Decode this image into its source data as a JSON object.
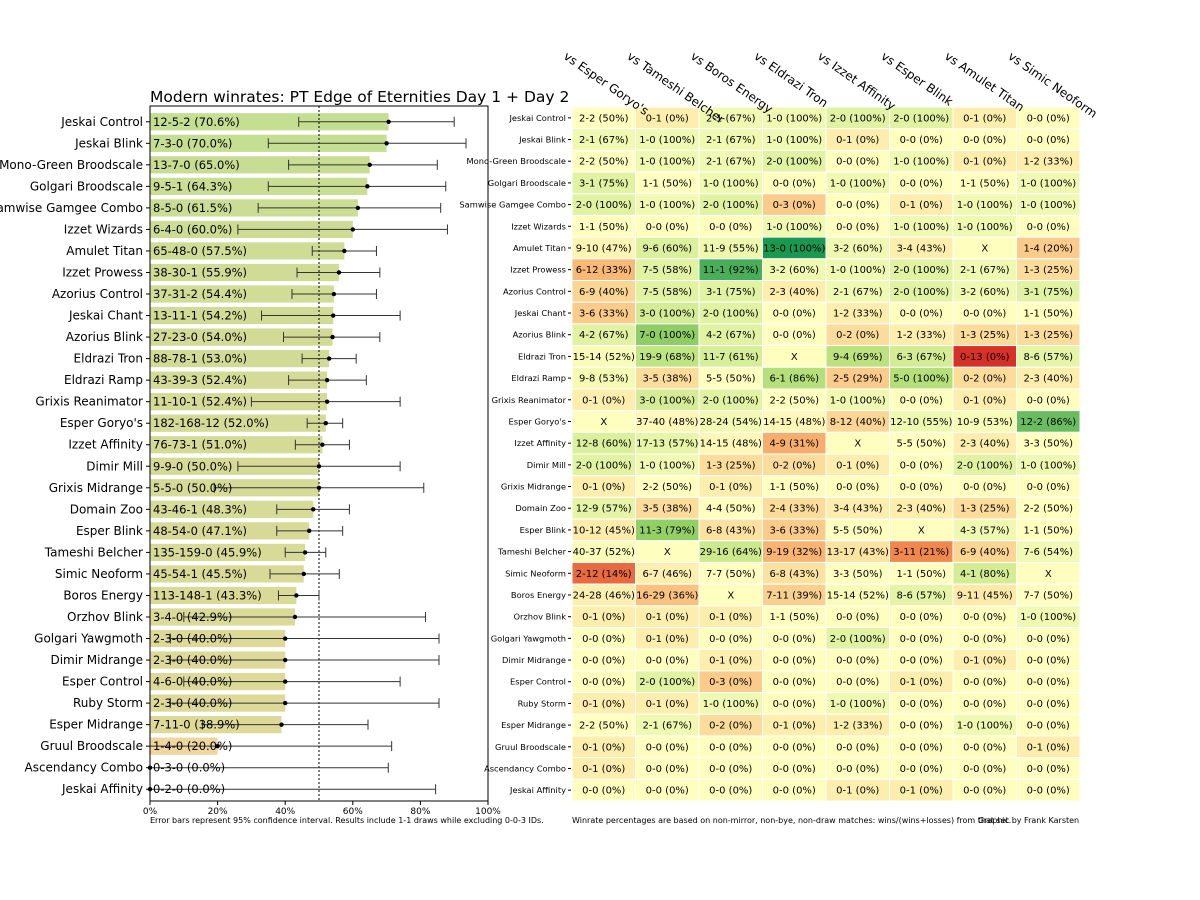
{
  "chart_data": [
    {
      "type": "bar",
      "orientation": "horizontal",
      "title": "Modern winrates: PT Edge of Eternities Day 1 + Day 2",
      "xlim": [
        0,
        100
      ],
      "x_ticks": [
        "0%",
        "20%",
        "40%",
        "60%",
        "80%",
        "100%"
      ],
      "reference_line": 50,
      "note": "Error bars represent 95% confidence interval. Results include 1-1 draws while excluding 0-0-3 IDs.",
      "categories": [
        "Jeskai Control",
        "Jeskai Blink",
        "Mono-Green Broodscale",
        "Golgari Broodscale",
        "Samwise Gamgee Combo",
        "Izzet Wizards",
        "Amulet Titan",
        "Izzet Prowess",
        "Azorius Control",
        "Jeskai Chant",
        "Azorius Blink",
        "Eldrazi Tron",
        "Eldrazi Ramp",
        "Grixis Reanimator",
        "Esper Goryo's",
        "Izzet Affinity",
        "Dimir Mill",
        "Grixis Midrange",
        "Domain Zoo",
        "Esper Blink",
        "Tameshi Belcher",
        "Simic Neoform",
        "Boros Energy",
        "Orzhov Blink",
        "Golgari Yawgmoth",
        "Dimir Midrange",
        "Esper Control",
        "Ruby Storm",
        "Esper Midrange",
        "Gruul Broodscale",
        "Ascendancy Combo",
        "Jeskai Affinity"
      ],
      "values": [
        70.6,
        70.0,
        65.0,
        64.3,
        61.5,
        60.0,
        57.5,
        55.9,
        54.4,
        54.2,
        54.0,
        53.0,
        52.4,
        52.4,
        52.0,
        51.0,
        50.0,
        50.0,
        48.3,
        47.1,
        45.9,
        45.5,
        43.3,
        42.9,
        40.0,
        40.0,
        40.0,
        40.0,
        38.9,
        20.0,
        0.0,
        0.0
      ],
      "labels": [
        "12-5-2 (70.6%)",
        "7-3-0 (70.0%)",
        "13-7-0 (65.0%)",
        "9-5-1 (64.3%)",
        "8-5-0 (61.5%)",
        "6-4-0 (60.0%)",
        "65-48-0 (57.5%)",
        "38-30-1 (55.9%)",
        "37-31-2 (54.4%)",
        "13-11-1 (54.2%)",
        "27-23-0 (54.0%)",
        "88-78-1 (53.0%)",
        "43-39-3 (52.4%)",
        "11-10-1 (52.4%)",
        "182-168-12 (52.0%)",
        "76-73-1 (51.0%)",
        "9-9-0 (50.0%)",
        "5-5-0 (50.0%)",
        "43-46-1 (48.3%)",
        "48-54-0 (47.1%)",
        "135-159-0 (45.9%)",
        "45-54-1 (45.5%)",
        "113-148-1 (43.3%)",
        "3-4-0 (42.9%)",
        "2-3-0 (40.0%)",
        "2-3-0 (40.0%)",
        "4-6-0 (40.0%)",
        "2-3-0 (40.0%)",
        "7-11-0 (38.9%)",
        "1-4-0 (20.0%)",
        "0-3-0 (0.0%)",
        "0-2-0 (0.0%)"
      ],
      "ci_low": [
        44,
        35,
        41,
        35,
        32,
        26,
        48,
        43.5,
        42,
        33,
        39.5,
        45,
        41,
        30,
        46.5,
        43,
        26,
        19,
        37.5,
        37.5,
        40,
        35.5,
        38,
        10,
        6,
        6,
        10,
        6,
        15.5,
        0,
        0,
        0
      ],
      "ci_high": [
        90,
        93.5,
        85,
        87.5,
        86,
        88,
        67,
        68,
        67,
        74,
        68,
        61,
        64,
        74,
        57,
        59,
        74,
        81,
        59,
        57,
        52,
        56,
        50,
        81.5,
        85.5,
        85.5,
        74,
        85.5,
        64.5,
        71.5,
        70.5,
        84.5
      ]
    },
    {
      "type": "heatmap",
      "note": "Winrate percentages are based on non-mirror, non-bye, non-draw matches: wins/(wins+losses) from that set.",
      "credit": "Graphic by Frank Karsten",
      "columns": [
        "vs Esper Goryo's",
        "vs Tameshi Belcher",
        "vs Boros Energy",
        "vs Eldrazi Tron",
        "vs Izzet Affinity",
        "vs Esper Blink",
        "vs Amulet Titan",
        "vs Simic Neoform"
      ],
      "rows": [
        {
          "name": "Jeskai Control",
          "cells": [
            "2-2 (50%)",
            "0-1 (0%)",
            "2-1 (67%)",
            "1-0 (100%)",
            "2-0 (100%)",
            "2-0 (100%)",
            "0-1 (0%)",
            "0-0 (0%)"
          ]
        },
        {
          "name": "Jeskai Blink",
          "cells": [
            "2-1 (67%)",
            "1-0 (100%)",
            "2-1 (67%)",
            "1-0 (100%)",
            "0-1 (0%)",
            "0-0 (0%)",
            "0-0 (0%)",
            "0-0 (0%)"
          ]
        },
        {
          "name": "Mono-Green Broodscale",
          "cells": [
            "2-2 (50%)",
            "1-0 (100%)",
            "2-1 (67%)",
            "2-0 (100%)",
            "0-0 (0%)",
            "1-0 (100%)",
            "0-1 (0%)",
            "1-2 (33%)"
          ]
        },
        {
          "name": "Golgari Broodscale",
          "cells": [
            "3-1 (75%)",
            "1-1 (50%)",
            "1-0 (100%)",
            "0-0 (0%)",
            "1-0 (100%)",
            "0-0 (0%)",
            "1-1 (50%)",
            "1-0 (100%)"
          ]
        },
        {
          "name": "Samwise Gamgee Combo",
          "cells": [
            "2-0 (100%)",
            "1-0 (100%)",
            "2-0 (100%)",
            "0-3 (0%)",
            "0-0 (0%)",
            "0-1 (0%)",
            "1-0 (100%)",
            "1-0 (100%)"
          ]
        },
        {
          "name": "Izzet Wizards",
          "cells": [
            "1-1 (50%)",
            "0-0 (0%)",
            "0-0 (0%)",
            "1-0 (100%)",
            "0-0 (0%)",
            "1-0 (100%)",
            "1-0 (100%)",
            "0-0 (0%)"
          ]
        },
        {
          "name": "Amulet Titan",
          "cells": [
            "9-10 (47%)",
            "9-6 (60%)",
            "11-9 (55%)",
            "13-0 (100%)",
            "3-2 (60%)",
            "3-4 (43%)",
            "X",
            "1-4 (20%)"
          ]
        },
        {
          "name": "Izzet Prowess",
          "cells": [
            "6-12 (33%)",
            "7-5 (58%)",
            "11-1 (92%)",
            "3-2 (60%)",
            "1-0 (100%)",
            "2-0 (100%)",
            "2-1 (67%)",
            "1-3 (25%)"
          ]
        },
        {
          "name": "Azorius Control",
          "cells": [
            "6-9 (40%)",
            "7-5 (58%)",
            "3-1 (75%)",
            "2-3 (40%)",
            "2-1 (67%)",
            "2-0 (100%)",
            "3-2 (60%)",
            "3-1 (75%)"
          ]
        },
        {
          "name": "Jeskai Chant",
          "cells": [
            "3-6 (33%)",
            "3-0 (100%)",
            "2-0 (100%)",
            "0-0 (0%)",
            "1-2 (33%)",
            "0-0 (0%)",
            "0-0 (0%)",
            "1-1 (50%)"
          ]
        },
        {
          "name": "Azorius Blink",
          "cells": [
            "4-2 (67%)",
            "7-0 (100%)",
            "4-2 (67%)",
            "0-0 (0%)",
            "0-2 (0%)",
            "1-2 (33%)",
            "1-3 (25%)",
            "1-3 (25%)"
          ]
        },
        {
          "name": "Eldrazi Tron",
          "cells": [
            "15-14 (52%)",
            "19-9 (68%)",
            "11-7 (61%)",
            "X",
            "9-4 (69%)",
            "6-3 (67%)",
            "0-13 (0%)",
            "8-6 (57%)"
          ]
        },
        {
          "name": "Eldrazi Ramp",
          "cells": [
            "9-8 (53%)",
            "3-5 (38%)",
            "5-5 (50%)",
            "6-1 (86%)",
            "2-5 (29%)",
            "5-0 (100%)",
            "0-2 (0%)",
            "2-3 (40%)"
          ]
        },
        {
          "name": "Grixis Reanimator",
          "cells": [
            "0-1 (0%)",
            "3-0 (100%)",
            "2-0 (100%)",
            "2-2 (50%)",
            "1-0 (100%)",
            "0-0 (0%)",
            "0-1 (0%)",
            "0-0 (0%)"
          ]
        },
        {
          "name": "Esper Goryo's",
          "cells": [
            "X",
            "37-40 (48%)",
            "28-24 (54%)",
            "14-15 (48%)",
            "8-12 (40%)",
            "12-10 (55%)",
            "10-9 (53%)",
            "12-2 (86%)"
          ]
        },
        {
          "name": "Izzet Affinity",
          "cells": [
            "12-8 (60%)",
            "17-13 (57%)",
            "14-15 (48%)",
            "4-9 (31%)",
            "X",
            "5-5 (50%)",
            "2-3 (40%)",
            "3-3 (50%)"
          ]
        },
        {
          "name": "Dimir Mill",
          "cells": [
            "2-0 (100%)",
            "1-0 (100%)",
            "1-3 (25%)",
            "0-2 (0%)",
            "0-1 (0%)",
            "0-0 (0%)",
            "2-0 (100%)",
            "1-0 (100%)"
          ]
        },
        {
          "name": "Grixis Midrange",
          "cells": [
            "0-1 (0%)",
            "2-2 (50%)",
            "0-1 (0%)",
            "1-1 (50%)",
            "0-0 (0%)",
            "0-0 (0%)",
            "0-0 (0%)",
            "0-0 (0%)"
          ]
        },
        {
          "name": "Domain Zoo",
          "cells": [
            "12-9 (57%)",
            "3-5 (38%)",
            "4-4 (50%)",
            "2-4 (33%)",
            "3-4 (43%)",
            "2-3 (40%)",
            "1-3 (25%)",
            "2-2 (50%)"
          ]
        },
        {
          "name": "Esper Blink",
          "cells": [
            "10-12 (45%)",
            "11-3 (79%)",
            "6-8 (43%)",
            "3-6 (33%)",
            "5-5 (50%)",
            "X",
            "4-3 (57%)",
            "1-1 (50%)"
          ]
        },
        {
          "name": "Tameshi Belcher",
          "cells": [
            "40-37 (52%)",
            "X",
            "29-16 (64%)",
            "9-19 (32%)",
            "13-17 (43%)",
            "3-11 (21%)",
            "6-9 (40%)",
            "7-6 (54%)"
          ]
        },
        {
          "name": "Simic Neoform",
          "cells": [
            "2-12 (14%)",
            "6-7 (46%)",
            "7-7 (50%)",
            "6-8 (43%)",
            "3-3 (50%)",
            "1-1 (50%)",
            "4-1 (80%)",
            "X"
          ]
        },
        {
          "name": "Boros Energy",
          "cells": [
            "24-28 (46%)",
            "16-29 (36%)",
            "X",
            "7-11 (39%)",
            "15-14 (52%)",
            "8-6 (57%)",
            "9-11 (45%)",
            "7-7 (50%)"
          ]
        },
        {
          "name": "Orzhov Blink",
          "cells": [
            "0-1 (0%)",
            "0-1 (0%)",
            "0-1 (0%)",
            "1-1 (50%)",
            "0-0 (0%)",
            "0-0 (0%)",
            "0-0 (0%)",
            "1-0 (100%)"
          ]
        },
        {
          "name": "Golgari Yawgmoth",
          "cells": [
            "0-0 (0%)",
            "0-1 (0%)",
            "0-0 (0%)",
            "0-0 (0%)",
            "2-0 (100%)",
            "0-0 (0%)",
            "0-0 (0%)",
            "0-0 (0%)"
          ]
        },
        {
          "name": "Dimir Midrange",
          "cells": [
            "0-0 (0%)",
            "0-0 (0%)",
            "0-1 (0%)",
            "0-0 (0%)",
            "0-0 (0%)",
            "0-0 (0%)",
            "0-1 (0%)",
            "0-0 (0%)"
          ]
        },
        {
          "name": "Esper Control",
          "cells": [
            "0-0 (0%)",
            "2-0 (100%)",
            "0-3 (0%)",
            "0-0 (0%)",
            "0-0 (0%)",
            "0-1 (0%)",
            "0-0 (0%)",
            "0-0 (0%)"
          ]
        },
        {
          "name": "Ruby Storm",
          "cells": [
            "0-1 (0%)",
            "0-1 (0%)",
            "1-0 (100%)",
            "0-0 (0%)",
            "1-0 (100%)",
            "0-0 (0%)",
            "0-0 (0%)",
            "0-0 (0%)"
          ]
        },
        {
          "name": "Esper Midrange",
          "cells": [
            "2-2 (50%)",
            "2-1 (67%)",
            "0-2 (0%)",
            "0-1 (0%)",
            "1-2 (33%)",
            "0-0 (0%)",
            "1-0 (100%)",
            "0-0 (0%)"
          ]
        },
        {
          "name": "Gruul Broodscale",
          "cells": [
            "0-1 (0%)",
            "0-0 (0%)",
            "0-0 (0%)",
            "0-0 (0%)",
            "0-0 (0%)",
            "0-0 (0%)",
            "0-0 (0%)",
            "0-1 (0%)"
          ]
        },
        {
          "name": "Ascendancy Combo",
          "cells": [
            "0-1 (0%)",
            "0-0 (0%)",
            "0-0 (0%)",
            "0-0 (0%)",
            "0-0 (0%)",
            "0-0 (0%)",
            "0-0 (0%)",
            "0-0 (0%)"
          ]
        },
        {
          "name": "Jeskai Affinity",
          "cells": [
            "0-0 (0%)",
            "0-0 (0%)",
            "0-0 (0%)",
            "0-0 (0%)",
            "0-1 (0%)",
            "0-1 (0%)",
            "0-0 (0%)",
            "0-0 (0%)"
          ]
        }
      ]
    }
  ]
}
